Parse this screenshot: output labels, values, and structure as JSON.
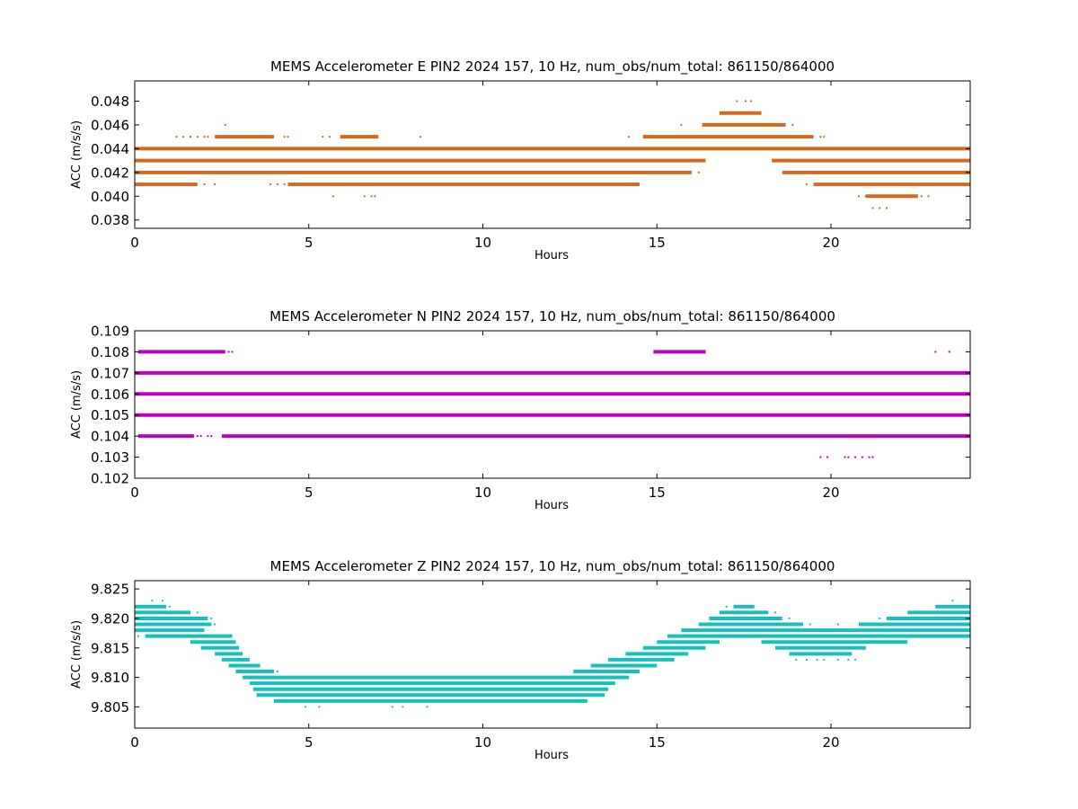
{
  "figure": {
    "background": "#ffffff"
  },
  "chart_data": [
    {
      "type": "scatter",
      "title": "MEMS Accelerometer E PIN2 2024 157, 10 Hz, num_obs/num_total: 861150/864000",
      "xlabel": "Hours",
      "ylabel": "ACC (m/s/s)",
      "xlim": [
        0,
        24
      ],
      "ylim": [
        0.0373,
        0.0497
      ],
      "xticks": [
        0,
        5,
        10,
        15,
        20
      ],
      "xtick_labels": [
        "0",
        "5",
        "10",
        "15",
        "20"
      ],
      "yticks": [
        0.038,
        0.04,
        0.042,
        0.044,
        0.046,
        0.048
      ],
      "ytick_labels": [
        "0.038",
        "0.040",
        "0.042",
        "0.044",
        "0.046",
        "0.048"
      ],
      "color": "#d2691e",
      "grid": false,
      "series": [
        {
          "bands": [
            {
              "y": 0.048,
              "segments": [],
              "dots": [
                17.3,
                17.55,
                17.7
              ]
            },
            {
              "y": 0.047,
              "segments": [
                [
                  16.8,
                  18.0
                ]
              ],
              "dots": []
            },
            {
              "y": 0.046,
              "segments": [
                [
                  16.3,
                  18.7
                ]
              ],
              "dots": [
                2.6,
                15.7,
                18.9
              ]
            },
            {
              "y": 0.045,
              "segments": [
                [
                  2.3,
                  4.0
                ],
                [
                  5.9,
                  7.0
                ],
                [
                  14.6,
                  19.5
                ]
              ],
              "dots": [
                1.2,
                1.4,
                1.6,
                1.8,
                2.0,
                2.1,
                4.3,
                4.4,
                5.4,
                5.6,
                8.2,
                14.2,
                19.7,
                19.8
              ]
            },
            {
              "y": 0.044,
              "segments": [
                [
                  0,
                  24
                ]
              ],
              "dots": []
            },
            {
              "y": 0.043,
              "segments": [
                [
                  0,
                  16.4
                ],
                [
                  18.3,
                  24
                ]
              ],
              "dots": []
            },
            {
              "y": 0.042,
              "segments": [
                [
                  0,
                  16.0
                ],
                [
                  18.6,
                  24
                ]
              ],
              "dots": [
                16.2
              ]
            },
            {
              "y": 0.041,
              "segments": [
                [
                  0,
                  1.8
                ],
                [
                  4.4,
                  14.5
                ],
                [
                  19.5,
                  24
                ]
              ],
              "dots": [
                2.0,
                2.3,
                3.9,
                4.1,
                4.3,
                19.3
              ]
            },
            {
              "y": 0.04,
              "segments": [
                [
                  21.0,
                  22.5
                ]
              ],
              "dots": [
                5.7,
                6.6,
                6.8,
                6.9,
                20.8,
                21.0,
                22.6,
                22.8
              ]
            },
            {
              "y": 0.039,
              "segments": [],
              "dots": [
                21.2,
                21.4,
                21.6
              ]
            }
          ]
        }
      ]
    },
    {
      "type": "scatter",
      "title": "MEMS Accelerometer N PIN2 2024 157, 10 Hz, num_obs/num_total: 861150/864000",
      "xlabel": "Hours",
      "ylabel": "ACC (m/s/s)",
      "xlim": [
        0,
        24
      ],
      "ylim": [
        0.102,
        0.109
      ],
      "xticks": [
        0,
        5,
        10,
        15,
        20
      ],
      "xtick_labels": [
        "0",
        "5",
        "10",
        "15",
        "20"
      ],
      "yticks": [
        0.102,
        0.103,
        0.104,
        0.105,
        0.106,
        0.107,
        0.108,
        0.109
      ],
      "ytick_labels": [
        "0.102",
        "0.103",
        "0.104",
        "0.105",
        "0.106",
        "0.107",
        "0.108",
        "0.109"
      ],
      "color": "#bf00bf",
      "grid": false,
      "series": [
        {
          "bands": [
            {
              "y": 0.108,
              "segments": [
                [
                  0.1,
                  2.6
                ],
                [
                  14.9,
                  16.4
                ]
              ],
              "dots": [
                2.7,
                2.8,
                23.0,
                23.4
              ]
            },
            {
              "y": 0.107,
              "segments": [
                [
                  0,
                  24
                ]
              ],
              "dots": []
            },
            {
              "y": 0.106,
              "segments": [
                [
                  0,
                  24
                ]
              ],
              "dots": []
            },
            {
              "y": 0.105,
              "segments": [
                [
                  0,
                  24
                ]
              ],
              "dots": []
            },
            {
              "y": 0.104,
              "segments": [
                [
                  0.1,
                  1.7
                ],
                [
                  2.5,
                  24
                ]
              ],
              "dots": [
                1.8,
                1.9,
                2.1,
                2.2
              ]
            },
            {
              "y": 0.103,
              "segments": [],
              "dots": [
                19.7,
                19.9,
                20.4,
                20.5,
                20.7,
                20.9,
                21.1,
                21.2
              ]
            }
          ]
        }
      ]
    },
    {
      "type": "scatter",
      "title": "MEMS Accelerometer Z PIN2 2024 157, 10 Hz, num_obs/num_total: 861150/864000",
      "xlabel": "Hours",
      "ylabel": "ACC (m/s/s)",
      "xlim": [
        0,
        24
      ],
      "ylim": [
        9.8014,
        9.8264
      ],
      "xticks": [
        0,
        5,
        10,
        15,
        20
      ],
      "xtick_labels": [
        "0",
        "5",
        "10",
        "15",
        "20"
      ],
      "yticks": [
        9.805,
        9.81,
        9.815,
        9.82,
        9.825
      ],
      "ytick_labels": [
        "9.805",
        "9.810",
        "9.815",
        "9.820",
        "9.825"
      ],
      "color": "#17bfbf",
      "grid": false,
      "series": [
        {
          "bands": [
            {
              "y": 9.823,
              "segments": [],
              "dots": [
                0.5,
                0.8,
                23.5
              ]
            },
            {
              "y": 9.822,
              "segments": [
                [
                  0,
                  0.9
                ],
                [
                  17.2,
                  17.8
                ],
                [
                  23.0,
                  24
                ]
              ],
              "dots": [
                1.0,
                17.0
              ]
            },
            {
              "y": 9.821,
              "segments": [
                [
                  0,
                  1.6
                ],
                [
                  16.8,
                  18.2
                ],
                [
                  22.2,
                  24
                ]
              ],
              "dots": [
                1.8,
                18.4
              ]
            },
            {
              "y": 9.82,
              "segments": [
                [
                  0,
                  2.1
                ],
                [
                  16.5,
                  18.6
                ],
                [
                  21.6,
                  24
                ]
              ],
              "dots": [
                2.2,
                18.8,
                21.4
              ]
            },
            {
              "y": 9.819,
              "segments": [
                [
                  0,
                  2.2
                ],
                [
                  16.2,
                  19.2
                ],
                [
                  20.8,
                  24
                ]
              ],
              "dots": [
                2.3,
                19.4,
                20.2
              ]
            },
            {
              "y": 9.818,
              "segments": [
                [
                  0,
                  2.0
                ],
                [
                  15.7,
                  24
                ]
              ],
              "dots": []
            },
            {
              "y": 9.817,
              "segments": [
                [
                  0.3,
                  2.8
                ],
                [
                  15.3,
                  24
                ]
              ],
              "dots": [
                0.1
              ]
            },
            {
              "y": 9.816,
              "segments": [
                [
                  1.6,
                  2.9
                ],
                [
                  15.0,
                  16.8
                ],
                [
                  18.0,
                  22.2
                ]
              ],
              "dots": []
            },
            {
              "y": 9.815,
              "segments": [
                [
                  1.9,
                  3.0
                ],
                [
                  14.6,
                  16.4
                ],
                [
                  18.4,
                  21.0
                ]
              ],
              "dots": []
            },
            {
              "y": 9.814,
              "segments": [
                [
                  2.3,
                  3.1
                ],
                [
                  14.1,
                  15.9
                ],
                [
                  18.8,
                  20.6
                ]
              ],
              "dots": []
            },
            {
              "y": 9.813,
              "segments": [
                [
                  2.5,
                  3.3
                ],
                [
                  13.6,
                  15.5
                ]
              ],
              "dots": [
                19.0,
                19.3,
                19.6,
                19.8,
                20.2,
                20.5,
                20.7
              ]
            },
            {
              "y": 9.812,
              "segments": [
                [
                  2.7,
                  3.6
                ],
                [
                  13.1,
                  15.0
                ]
              ],
              "dots": []
            },
            {
              "y": 9.811,
              "segments": [
                [
                  2.9,
                  4.0
                ],
                [
                  12.6,
                  14.5
                ]
              ],
              "dots": [
                4.1
              ]
            },
            {
              "y": 9.81,
              "segments": [
                [
                  3.1,
                  14.2
                ]
              ],
              "dots": [
                4.2,
                4.6,
                5.0,
                6.7,
                8.1,
                9.2,
                9.6,
                10.4,
                11.1,
                12.5
              ]
            },
            {
              "y": 9.809,
              "segments": [
                [
                  3.3,
                  13.8
                ]
              ],
              "dots": []
            },
            {
              "y": 9.808,
              "segments": [
                [
                  3.4,
                  13.6
                ]
              ],
              "dots": []
            },
            {
              "y": 9.807,
              "segments": [
                [
                  3.5,
                  13.5
                ]
              ],
              "dots": []
            },
            {
              "y": 9.806,
              "segments": [
                [
                  4.0,
                  13.0
                ]
              ],
              "dots": []
            },
            {
              "y": 9.805,
              "segments": [],
              "dots": [
                4.9,
                5.3,
                7.4,
                7.7,
                8.4
              ]
            }
          ]
        }
      ]
    }
  ]
}
